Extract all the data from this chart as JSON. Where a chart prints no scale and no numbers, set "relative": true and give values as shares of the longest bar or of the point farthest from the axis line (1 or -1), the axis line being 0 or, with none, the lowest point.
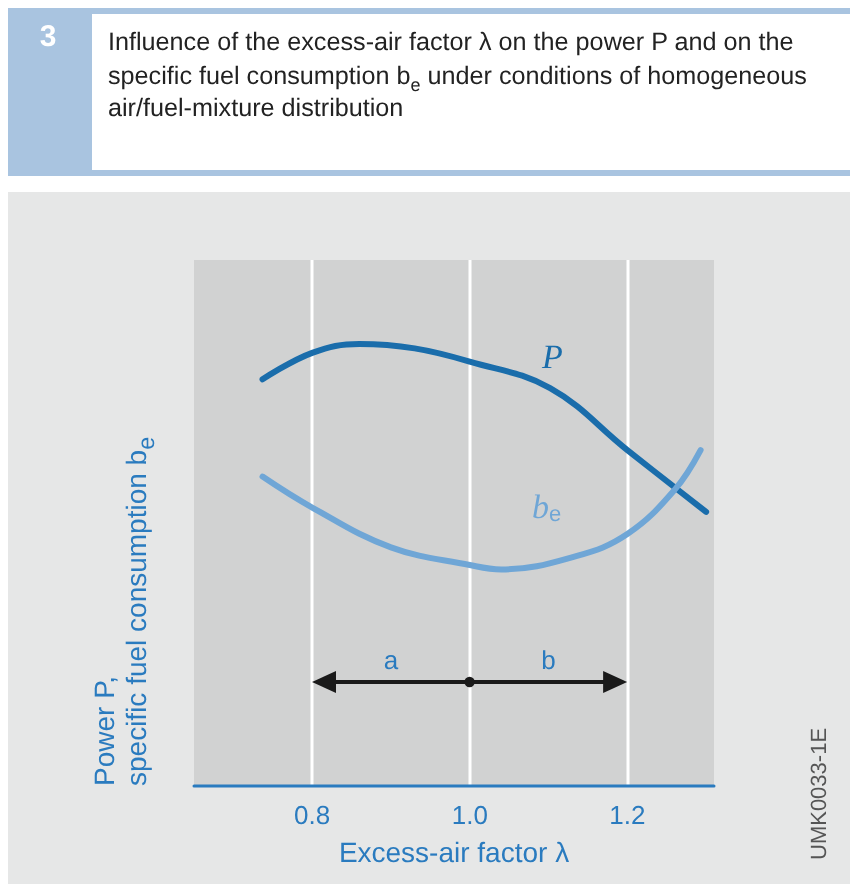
{
  "chart_data": {
    "type": "line",
    "title": "Influence of the excess-air factor λ on the power P and on the specific fuel consumption b$_{e}$ under conditions of homogeneous air/fuel-mixture distribution",
    "xlabel": "Excess-air factor λ",
    "ylabel": "Power P, specific fuel consumption b$_{e}$",
    "relative": true,
    "grid": "x",
    "legend": false,
    "marker": "none",
    "line_style": "solid",
    "xlim": [
      0.65,
      1.31
    ],
    "xticks": [
      {
        "value": 0.8,
        "label": "0.8"
      },
      {
        "value": 1.0,
        "label": "1.0"
      },
      {
        "value": 1.2,
        "label": "1.2"
      }
    ],
    "series": [
      {
        "name": "P",
        "color": "#1a6dab",
        "x": [
          0.737,
          0.8,
          0.86,
          0.93,
          1.0,
          1.102,
          1.2,
          1.3
        ],
        "values": [
          0.92,
          0.98,
          1.0,
          0.99,
          0.96,
          0.9,
          0.76,
          0.62
        ]
      },
      {
        "name": "b$_{e}$",
        "color": "#6fa6d6",
        "x": [
          0.737,
          0.8,
          0.9,
          1.0,
          1.04,
          1.135,
          1.2,
          1.26,
          1.293
        ],
        "values": [
          0.7,
          0.63,
          0.54,
          0.5,
          0.49,
          0.52,
          0.57,
          0.67,
          0.76
        ]
      }
    ],
    "annotations": [
      "3",
      "a",
      "b",
      "UMK0033-1E"
    ]
  }
}
